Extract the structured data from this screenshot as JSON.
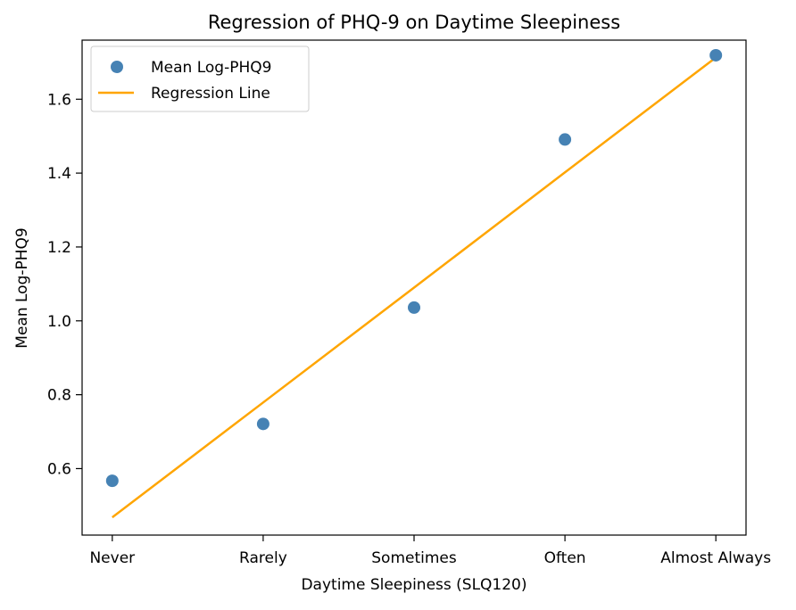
{
  "chart_data": {
    "type": "scatter",
    "title": "Regression of PHQ-9 on Daytime Sleepiness",
    "xlabel": "Daytime Sleepiness (SLQ120)",
    "ylabel": "Mean Log-PHQ9",
    "categories": [
      "Never",
      "Rarely",
      "Sometimes",
      "Often",
      "Almost Always"
    ],
    "ylim": [
      0.42,
      1.76
    ],
    "yticks": [
      0.6,
      0.8,
      1.0,
      1.2,
      1.4,
      1.6
    ],
    "ytick_labels": [
      "0.6",
      "0.8",
      "1.0",
      "1.2",
      "1.4",
      "1.6"
    ],
    "grid": false,
    "legend_position": "top-left",
    "series": [
      {
        "name": "Mean Log-PHQ9",
        "type": "scatter",
        "color": "#4682b4",
        "values": [
          0.567,
          0.721,
          1.036,
          1.491,
          1.719
        ]
      },
      {
        "name": "Regression Line",
        "type": "line",
        "color": "#ffa500",
        "values": [
          0.468,
          0.779,
          1.09,
          1.402,
          1.713
        ]
      }
    ]
  }
}
